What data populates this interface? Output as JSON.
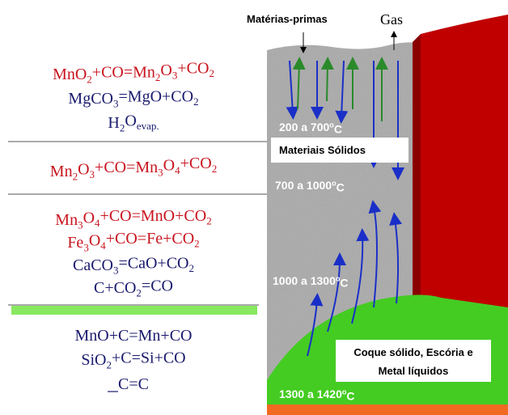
{
  "labels": {
    "raw_materials": "Matérias-primas",
    "gas": "Gas",
    "solids": "Materiais Sólidos",
    "liquids_line1": "Coque sólido, Escória e",
    "liquids_line2": "Metal líquidos"
  },
  "temperatures": [
    [
      "200 a 700",
      "o",
      "C"
    ],
    [
      "700 a 1000",
      "o",
      "C"
    ],
    [
      "1000 a 1300",
      "o",
      "C"
    ],
    [
      "1300 a 1420",
      "o",
      "C"
    ]
  ],
  "reaction_groups": [
    [
      [
        "MnO",
        "2",
        "+CO=Mn",
        "2",
        "O",
        "3",
        "+CO",
        "2"
      ],
      [
        "MgCO",
        "3",
        "=MgO+CO",
        "2"
      ],
      [
        "H",
        "2",
        "O",
        "evap."
      ]
    ],
    [
      [
        "Mn",
        "2",
        "O",
        "3",
        "+CO=Mn",
        "3",
        "O",
        "4",
        "+CO",
        "2"
      ]
    ],
    [
      [
        "Mn",
        "3",
        "O",
        "4",
        "+CO=MnO+CO",
        "2"
      ],
      [
        "Fe",
        "3",
        "O",
        "4",
        "+CO=Fe+CO",
        "2"
      ],
      [
        "CaCO",
        "3",
        "=CaO+CO",
        "2"
      ],
      [
        "C+CO",
        "2",
        "=CO"
      ]
    ],
    [
      [
        "MnO+C=Mn+CO"
      ],
      [
        "SiO",
        "2",
        "+C=Si+CO"
      ],
      [
        "C=C"
      ]
    ]
  ]
}
